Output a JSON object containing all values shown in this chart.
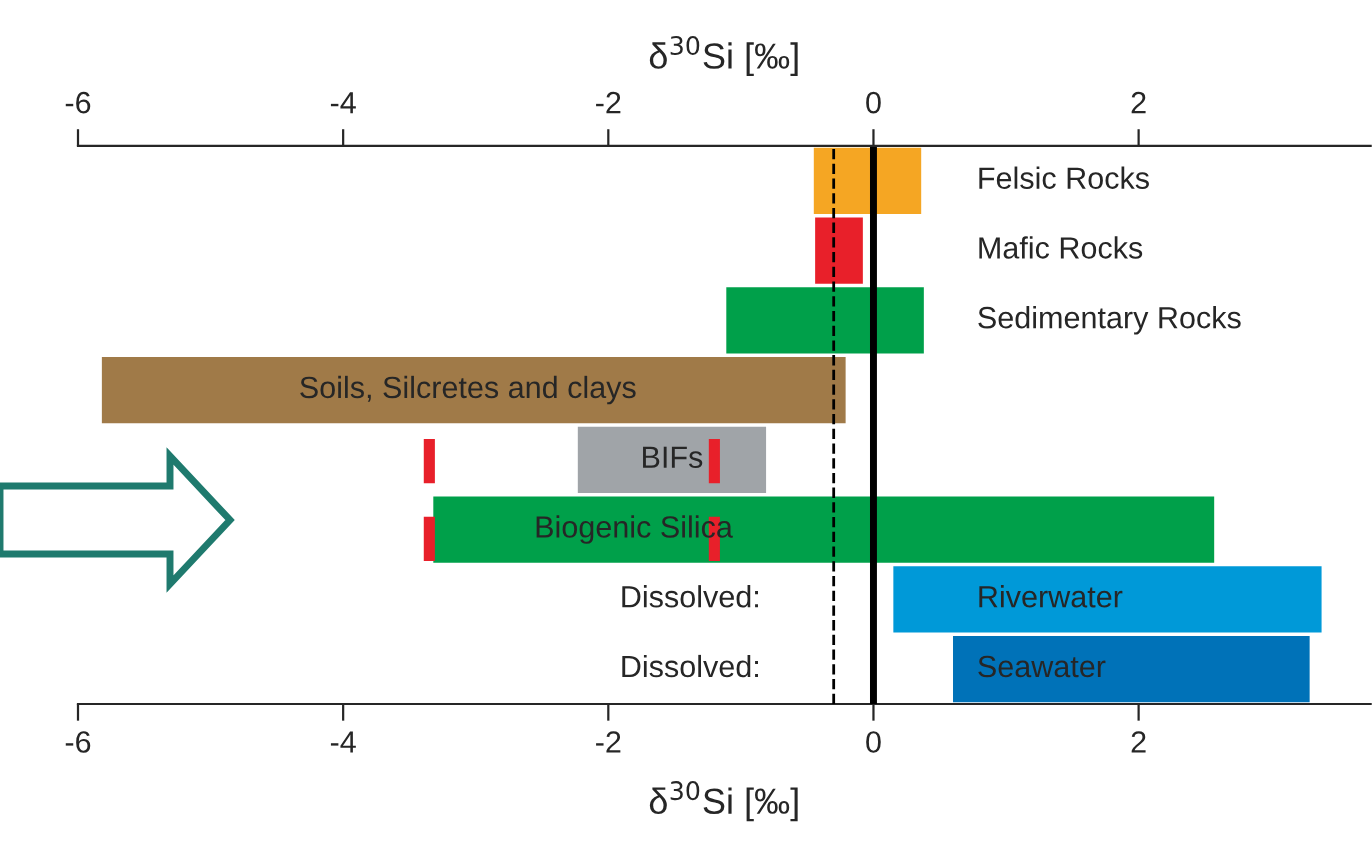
{
  "chart_data": {
    "type": "bar",
    "orientation": "horizontal",
    "xlabel": "δ$^{30}$Si [‰]",
    "x2label": "δ$^{30}$Si [‰]",
    "categories": [
      "Felsic Rocks",
      "Mafic Rocks",
      "Sedimentary Rocks",
      "Soils, Silcretes and clays",
      "BIFs",
      "Biogenic Silica",
      "Riverwater",
      "Seawater"
    ],
    "base": [
      -0.45,
      -0.44,
      -1.11,
      -5.82,
      -2.23,
      -3.32,
      0.15,
      0.6
    ],
    "values": [
      0.81,
      0.36,
      1.49,
      5.61,
      1.42,
      5.89,
      3.23,
      2.69
    ],
    "colors": [
      "#f5a623",
      "#e8202a",
      "#00a04a",
      "#a07a48",
      "#a0a4a8",
      "#00a04a",
      "#0099d8",
      "#0072b8"
    ],
    "xlim": [
      -6,
      3.75
    ],
    "xticks": [
      -6,
      -4,
      -2,
      0,
      2
    ],
    "x2lim": [
      -6,
      3.75
    ],
    "x2ticks": [
      -6,
      -4,
      -2,
      0,
      2
    ],
    "ref_lines": [
      {
        "axis": "x",
        "value": 0,
        "color": "#000000",
        "line_style": "solid"
      },
      {
        "axis": "x",
        "value": -0.3,
        "color": "#000000",
        "line_style": "dashed"
      },
      {
        "axis": "x",
        "value": -3.35,
        "color": "#e8202a",
        "line_style": "dashed"
      },
      {
        "axis": "x",
        "value": -1.2,
        "color": "#e8202a",
        "line_style": "dashed"
      }
    ],
    "annotations": [
      "Dissolved:",
      "Dissolved:"
    ],
    "grid": false
  }
}
